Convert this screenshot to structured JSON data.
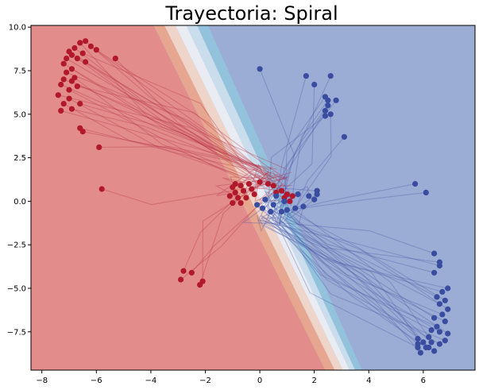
{
  "chart_data": {
    "type": "scatter",
    "title": "Trayectoria: Spiral",
    "xlabel": "",
    "ylabel": "",
    "xlim": [
      -8.4,
      7.9
    ],
    "ylim": [
      -9.7,
      10.1
    ],
    "x_ticks": [
      -8,
      -6,
      -4,
      -2,
      0,
      2,
      4,
      6
    ],
    "y_ticks": [
      10.0,
      7.5,
      5.0,
      2.5,
      0.0,
      -2.5,
      -5.0,
      -7.5
    ],
    "x_tick_labels": [
      "−8",
      "−6",
      "−4",
      "−2",
      "0",
      "2",
      "4",
      "6"
    ],
    "y_tick_labels": [
      "10.0",
      "7.5",
      "5.0",
      "2.5",
      "0.0",
      "−2.5",
      "−5.0",
      "−7.5"
    ],
    "grid": false,
    "legend": "none",
    "colors": {
      "red_region": "#e28c8c",
      "blue_region": "#9badd4",
      "red_points": "#b2182b",
      "blue_points": "#3a4ca0",
      "red_traj": "#b73548",
      "blue_traj": "#4a5aa8"
    },
    "decision_boundary": {
      "top": [
        [
          -3.9,
          10.1
        ],
        [
          -3.5,
          10.1
        ],
        [
          -3.1,
          10.1
        ],
        [
          -2.7,
          10.1
        ],
        [
          -2.3,
          10.1
        ],
        [
          -1.9,
          10.1
        ]
      ],
      "bottom": [
        [
          2.4,
          -9.7
        ],
        [
          2.75,
          -9.7
        ],
        [
          3.05,
          -9.7
        ],
        [
          3.3,
          -9.7
        ],
        [
          3.5,
          -9.7
        ],
        [
          3.75,
          -9.7
        ]
      ],
      "band_colors": [
        "#f4a582",
        "#fddbc7",
        "#f7f7f7",
        "#d1e5f0",
        "#92c5de"
      ]
    },
    "series": [
      {
        "class": "red",
        "points": [
          [
            -6.6,
            9.1
          ],
          [
            -6.4,
            9.2
          ],
          [
            -6.2,
            8.9
          ],
          [
            -6.8,
            8.8
          ],
          [
            -7.0,
            8.6
          ],
          [
            -6.5,
            8.5
          ],
          [
            -6.9,
            8.4
          ],
          [
            -7.1,
            8.2
          ],
          [
            -6.7,
            8.2
          ],
          [
            -6.4,
            8.0
          ],
          [
            -7.2,
            7.9
          ],
          [
            -6.9,
            7.6
          ],
          [
            -7.1,
            7.4
          ],
          [
            -6.8,
            7.1
          ],
          [
            -7.2,
            7.0
          ],
          [
            -6.9,
            6.9
          ],
          [
            -7.3,
            6.7
          ],
          [
            -7.0,
            6.4
          ],
          [
            -6.7,
            6.6
          ],
          [
            -7.4,
            6.1
          ],
          [
            -7.0,
            5.9
          ],
          [
            -6.6,
            5.6
          ],
          [
            -7.2,
            5.6
          ],
          [
            -6.9,
            5.3
          ],
          [
            -7.3,
            5.2
          ],
          [
            -6.6,
            4.2
          ],
          [
            -6.5,
            4.0
          ],
          [
            -5.9,
            3.1
          ],
          [
            -5.8,
            0.7
          ],
          [
            -6.0,
            8.7
          ],
          [
            -5.3,
            8.2
          ],
          [
            -2.8,
            -4.0
          ],
          [
            -2.5,
            -4.1
          ],
          [
            -2.9,
            -4.5
          ],
          [
            -2.1,
            -4.6
          ],
          [
            -2.2,
            -4.8
          ],
          [
            -1.0,
            0.8
          ],
          [
            -0.9,
            0.5
          ],
          [
            -0.8,
            0.2
          ],
          [
            -1.1,
            0.3
          ],
          [
            -0.7,
            -0.1
          ],
          [
            -0.6,
            0.6
          ],
          [
            -0.4,
            1.0
          ],
          [
            -1.0,
            -0.1
          ],
          [
            -0.5,
            0.2
          ],
          [
            -0.3,
            0.7
          ],
          [
            -0.9,
            1.0
          ],
          [
            0.0,
            1.1
          ],
          [
            0.3,
            1.0
          ],
          [
            0.5,
            0.9
          ],
          [
            0.6,
            0.5
          ],
          [
            0.8,
            0.6
          ],
          [
            1.0,
            0.4
          ],
          [
            1.2,
            0.3
          ],
          [
            0.9,
            0.2
          ],
          [
            1.1,
            0.0
          ],
          [
            -0.2,
            0.4
          ],
          [
            -0.7,
            0.9
          ]
        ]
      },
      {
        "class": "blue",
        "points": [
          [
            0.0,
            7.6
          ],
          [
            1.7,
            7.2
          ],
          [
            2.0,
            6.7
          ],
          [
            2.6,
            7.2
          ],
          [
            2.4,
            6.0
          ],
          [
            2.5,
            5.8
          ],
          [
            2.8,
            5.8
          ],
          [
            2.5,
            5.5
          ],
          [
            2.4,
            5.2
          ],
          [
            2.6,
            5.0
          ],
          [
            2.4,
            4.9
          ],
          [
            3.1,
            3.7
          ],
          [
            5.7,
            1.0
          ],
          [
            6.1,
            0.5
          ],
          [
            1.4,
            0.4
          ],
          [
            1.8,
            0.3
          ],
          [
            2.0,
            0.1
          ],
          [
            2.1,
            0.4
          ],
          [
            2.1,
            0.6
          ],
          [
            1.6,
            -0.3
          ],
          [
            1.3,
            -0.4
          ],
          [
            1.0,
            -0.5
          ],
          [
            0.8,
            -0.6
          ],
          [
            0.4,
            -0.6
          ],
          [
            0.1,
            -0.4
          ],
          [
            -0.1,
            -0.2
          ],
          [
            0.5,
            -0.2
          ],
          [
            0.2,
            0.1
          ],
          [
            0.9,
            0.0
          ],
          [
            0.6,
            0.3
          ],
          [
            6.4,
            -3.0
          ],
          [
            6.6,
            -3.5
          ],
          [
            6.6,
            -3.7
          ],
          [
            6.4,
            -4.1
          ],
          [
            6.9,
            -5.0
          ],
          [
            6.7,
            -5.2
          ],
          [
            6.5,
            -5.5
          ],
          [
            6.8,
            -5.7
          ],
          [
            6.6,
            -5.9
          ],
          [
            6.9,
            -6.2
          ],
          [
            6.7,
            -6.5
          ],
          [
            6.4,
            -6.7
          ],
          [
            6.8,
            -6.9
          ],
          [
            6.5,
            -7.2
          ],
          [
            6.3,
            -7.4
          ],
          [
            6.6,
            -7.5
          ],
          [
            6.9,
            -7.6
          ],
          [
            6.2,
            -7.8
          ],
          [
            5.8,
            -7.9
          ],
          [
            6.0,
            -8.1
          ],
          [
            6.3,
            -8.1
          ],
          [
            6.6,
            -8.2
          ],
          [
            6.1,
            -8.4
          ],
          [
            5.8,
            -8.2
          ],
          [
            6.4,
            -8.6
          ],
          [
            5.9,
            -8.7
          ],
          [
            6.2,
            -8.4
          ],
          [
            6.8,
            -8.0
          ],
          [
            5.8,
            -8.4
          ]
        ]
      }
    ]
  }
}
